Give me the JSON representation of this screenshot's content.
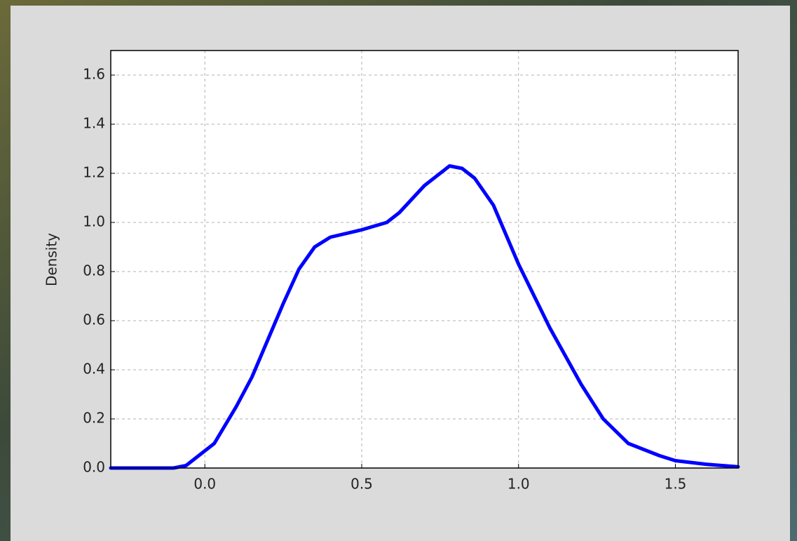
{
  "chart_data": {
    "type": "line",
    "y_label": "Density",
    "x": [
      -0.3,
      -0.1,
      -0.06,
      0.0,
      0.03,
      0.1,
      0.15,
      0.2,
      0.25,
      0.3,
      0.35,
      0.4,
      0.5,
      0.58,
      0.62,
      0.7,
      0.78,
      0.82,
      0.86,
      0.92,
      1.0,
      1.1,
      1.2,
      1.27,
      1.35,
      1.45,
      1.5,
      1.6,
      1.7
    ],
    "series": [
      {
        "color": "#0000ff",
        "values": [
          0,
          0,
          0.01,
          0.07,
          0.1,
          0.25,
          0.37,
          0.52,
          0.67,
          0.81,
          0.9,
          0.94,
          0.97,
          1.0,
          1.04,
          1.15,
          1.23,
          1.22,
          1.18,
          1.07,
          0.83,
          0.57,
          0.34,
          0.2,
          0.1,
          0.05,
          0.03,
          0.015,
          0.005
        ]
      }
    ],
    "xlim": [
      -0.3,
      1.7
    ],
    "ylim": [
      0,
      1.7
    ],
    "xticks": [
      {
        "value": 0,
        "label": "0.0"
      },
      0.5,
      {
        "value": 1,
        "label": "1.0"
      },
      1.5
    ],
    "yticks": [
      {
        "value": 0,
        "label": "0.0"
      },
      0.2,
      0.4,
      0.6,
      0.8,
      {
        "value": 1,
        "label": "1.0"
      },
      1.2,
      1.4,
      1.6
    ],
    "grid": true
  }
}
